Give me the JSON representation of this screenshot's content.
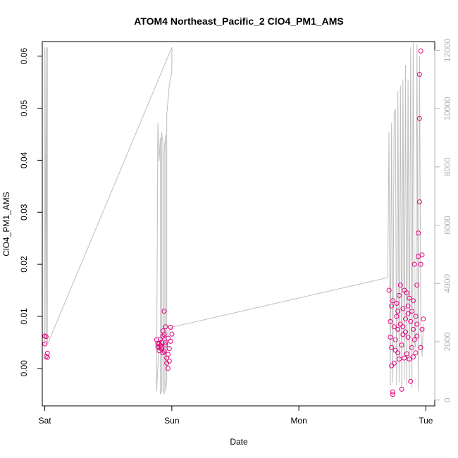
{
  "chart_data": {
    "type": "scatter",
    "title": "ATOM4 Northeast_Pacific_2 ClO4_PM1_AMS",
    "xlabel": "Date",
    "ylabel": "ClO4_PM1_AMS",
    "x_ticks": [
      {
        "label": "Sat",
        "day": 0
      },
      {
        "label": "Sun",
        "day": 1
      },
      {
        "label": "Mon",
        "day": 2
      },
      {
        "label": "Tue",
        "day": 3
      }
    ],
    "xlim_days": [
      -0.02,
      3.07
    ],
    "ylim": [
      -0.0072,
      0.0628
    ],
    "y_ticks": [
      0.0,
      0.01,
      0.02,
      0.03,
      0.04,
      0.05,
      0.06
    ],
    "y_tick_labels": [
      "0.00",
      "0.01",
      "0.02",
      "0.03",
      "0.04",
      "0.05",
      "0.06"
    ],
    "y2_label": "",
    "y2lim": [
      -200,
      12300
    ],
    "y2_ticks": [
      0,
      2000,
      4000,
      6000,
      8000,
      10000,
      12000
    ],
    "y2_tick_labels": [
      "0",
      "2000",
      "4000",
      "6000",
      "8000",
      "10000",
      "12000"
    ],
    "grid": false,
    "legend": "none",
    "colors": {
      "points": "#e6007e",
      "line": "#bdbdbd"
    },
    "series": [
      {
        "points": [
          {
            "x": 0.0,
            "y": 0.0062
          },
          {
            "x": 0.01,
            "y": 0.0061
          },
          {
            "x": 0.0,
            "y": 0.0047
          },
          {
            "x": 0.02,
            "y": 0.0029
          },
          {
            "x": 0.01,
            "y": 0.0023
          },
          {
            "x": 0.02,
            "y": 0.0021
          },
          {
            "x": 0.88,
            "y": 0.0055
          },
          {
            "x": 0.89,
            "y": 0.0048
          },
          {
            "x": 0.89,
            "y": 0.0042
          },
          {
            "x": 0.9,
            "y": 0.004
          },
          {
            "x": 0.9,
            "y": 0.0034
          },
          {
            "x": 0.91,
            "y": 0.0056
          },
          {
            "x": 0.91,
            "y": 0.0044
          },
          {
            "x": 0.92,
            "y": 0.005
          },
          {
            "x": 0.92,
            "y": 0.0037
          },
          {
            "x": 0.93,
            "y": 0.003
          },
          {
            "x": 0.93,
            "y": 0.0072
          },
          {
            "x": 0.94,
            "y": 0.011
          },
          {
            "x": 0.94,
            "y": 0.0065
          },
          {
            "x": 0.95,
            "y": 0.008
          },
          {
            "x": 0.95,
            "y": 0.0045
          },
          {
            "x": 0.96,
            "y": 0.002
          },
          {
            "x": 0.96,
            "y": 0.001
          },
          {
            "x": 0.97,
            "y": 0.0
          },
          {
            "x": 0.97,
            "y": 0.0058
          },
          {
            "x": 0.98,
            "y": 0.0038
          },
          {
            "x": 0.98,
            "y": 0.0014
          },
          {
            "x": 0.99,
            "y": 0.0079
          },
          {
            "x": 0.99,
            "y": 0.0052
          },
          {
            "x": 1.0,
            "y": 0.0066
          },
          {
            "x": 0.93,
            "y": 0.0062
          },
          {
            "x": 0.95,
            "y": 0.0049
          },
          {
            "x": 0.97,
            "y": 0.0027
          },
          {
            "x": 0.92,
            "y": 0.0041
          },
          {
            "x": 0.9,
            "y": 0.0047
          },
          {
            "x": 0.94,
            "y": 0.0033
          },
          {
            "x": 2.71,
            "y": 0.015
          },
          {
            "x": 2.72,
            "y": 0.009
          },
          {
            "x": 2.72,
            "y": 0.006
          },
          {
            "x": 2.73,
            "y": 0.004
          },
          {
            "x": 2.73,
            "y": 0.0005
          },
          {
            "x": 2.74,
            "y": -0.0045
          },
          {
            "x": 2.74,
            "y": -0.005
          },
          {
            "x": 2.73,
            "y": 0.012
          },
          {
            "x": 2.74,
            "y": 0.013
          },
          {
            "x": 2.75,
            "y": 0.008
          },
          {
            "x": 2.75,
            "y": 0.001
          },
          {
            "x": 2.76,
            "y": 0.0055
          },
          {
            "x": 2.76,
            "y": 0.0035
          },
          {
            "x": 2.77,
            "y": 0.0125
          },
          {
            "x": 2.77,
            "y": 0.01
          },
          {
            "x": 2.78,
            "y": 0.0075
          },
          {
            "x": 2.78,
            "y": 0.003
          },
          {
            "x": 2.79,
            "y": 0.0018
          },
          {
            "x": 2.79,
            "y": 0.014
          },
          {
            "x": 2.8,
            "y": 0.016
          },
          {
            "x": 2.8,
            "y": 0.0085
          },
          {
            "x": 2.81,
            "y": 0.0045
          },
          {
            "x": 2.81,
            "y": -0.004
          },
          {
            "x": 2.82,
            "y": 0.0065
          },
          {
            "x": 2.82,
            "y": 0.0115
          },
          {
            "x": 2.83,
            "y": 0.015
          },
          {
            "x": 2.83,
            "y": 0.002
          },
          {
            "x": 2.84,
            "y": 0.0095
          },
          {
            "x": 2.84,
            "y": 0.007
          },
          {
            "x": 2.85,
            "y": 0.0145
          },
          {
            "x": 2.85,
            "y": 0.0028
          },
          {
            "x": 2.86,
            "y": 0.012
          },
          {
            "x": 2.86,
            "y": 0.006
          },
          {
            "x": 2.87,
            "y": 0.0135
          },
          {
            "x": 2.87,
            "y": 0.0018
          },
          {
            "x": 2.88,
            "y": -0.0025
          },
          {
            "x": 2.88,
            "y": 0.009
          },
          {
            "x": 2.89,
            "y": 0.011
          },
          {
            "x": 2.89,
            "y": 0.004
          },
          {
            "x": 2.9,
            "y": 0.0075
          },
          {
            "x": 2.9,
            "y": 0.013
          },
          {
            "x": 2.91,
            "y": 0.02
          },
          {
            "x": 2.91,
            "y": 0.0055
          },
          {
            "x": 2.92,
            "y": 0.003
          },
          {
            "x": 2.92,
            "y": 0.01
          },
          {
            "x": 2.93,
            "y": 0.016
          },
          {
            "x": 2.93,
            "y": 0.0085
          },
          {
            "x": 2.94,
            "y": 0.0215
          },
          {
            "x": 2.94,
            "y": 0.026
          },
          {
            "x": 2.95,
            "y": 0.032
          },
          {
            "x": 2.95,
            "y": 0.048
          },
          {
            "x": 2.95,
            "y": 0.0565
          },
          {
            "x": 2.96,
            "y": 0.061
          },
          {
            "x": 2.96,
            "y": 0.02
          },
          {
            "x": 2.97,
            "y": 0.0218
          },
          {
            "x": 2.97,
            "y": 0.0075
          },
          {
            "x": 2.98,
            "y": 0.0095
          },
          {
            "x": 2.96,
            "y": 0.004
          },
          {
            "x": 2.93,
            "y": 0.0062
          },
          {
            "x": 2.9,
            "y": 0.0022
          },
          {
            "x": 2.86,
            "y": 0.0105
          },
          {
            "x": 2.82,
            "y": 0.008
          },
          {
            "x": 2.78,
            "y": 0.011
          }
        ]
      }
    ],
    "secondary_line": {
      "x": [
        0.0,
        0.0,
        0.01,
        0.01,
        0.02,
        0.02,
        1.0,
        1.0,
        0.98,
        0.97,
        0.96,
        0.96,
        0.95,
        0.95,
        0.94,
        0.94,
        0.93,
        0.93,
        0.92,
        0.92,
        0.91,
        0.91,
        0.9,
        0.89,
        0.88,
        0.9,
        1.0,
        2.7,
        2.71,
        2.72,
        2.73,
        2.74,
        2.75,
        2.76,
        2.77,
        2.78,
        2.79,
        2.8,
        2.81,
        2.82,
        2.83,
        2.84,
        2.85,
        2.86,
        2.87,
        2.88,
        2.89,
        2.9,
        2.91,
        2.92,
        2.93,
        2.94,
        2.95,
        2.96,
        2.97,
        2.98
      ],
      "y": [
        12100,
        1900,
        12100,
        2000,
        12100,
        1900,
        12100,
        11300,
        10800,
        10300,
        9800,
        700,
        300,
        9100,
        8500,
        200,
        400,
        8800,
        9200,
        300,
        200,
        9000,
        8200,
        9500,
        300,
        1900,
        2500,
        4200,
        9200,
        500,
        9500,
        600,
        9800,
        10000,
        500,
        10600,
        600,
        10800,
        400,
        11000,
        700,
        11500,
        500,
        11000,
        600,
        12100,
        400,
        12300,
        2000,
        1800,
        12200,
        300,
        11800,
        2500,
        1500,
        2600
      ]
    }
  }
}
